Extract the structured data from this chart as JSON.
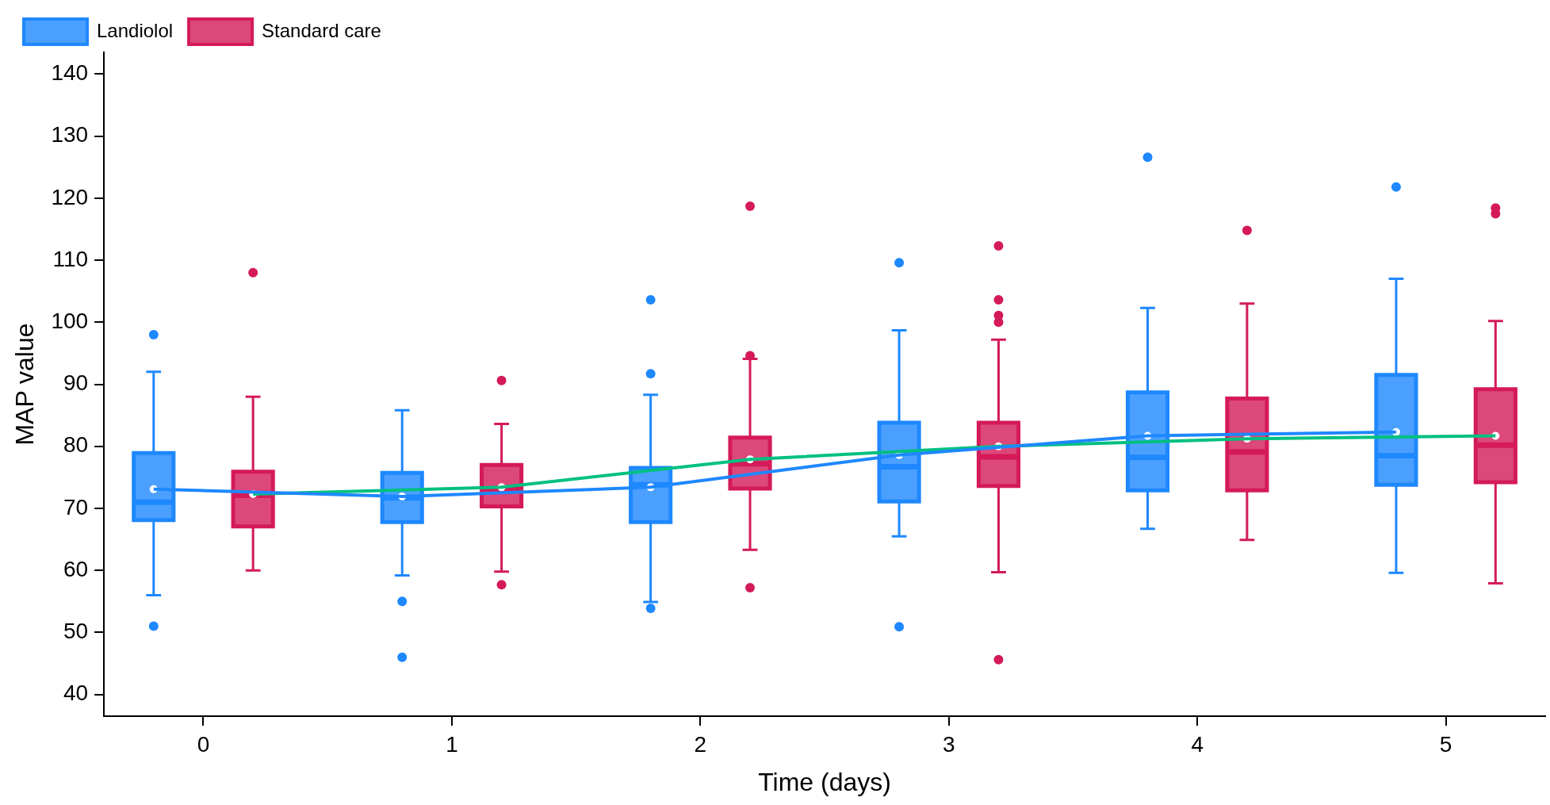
{
  "chart_data": {
    "type": "box",
    "xlabel": "Time (days)",
    "ylabel": "MAP value",
    "xlim": [
      -0.4,
      5.4
    ],
    "xticks": [
      0,
      1,
      2,
      3,
      4,
      5
    ],
    "ylim": [
      36.5,
      143.5
    ],
    "yticks": [
      40,
      50,
      60,
      70,
      80,
      90,
      100,
      110,
      120,
      130,
      140
    ],
    "grid": false,
    "legend": "top left",
    "series": [
      {
        "name": "Landiolol",
        "color": "#1e88ff",
        "x": [
          -0.2,
          0.8,
          1.8,
          2.8,
          3.8,
          4.8
        ],
        "boxes": [
          {
            "low": 56.0,
            "q1": 68.1,
            "median": 71.0,
            "q3": 78.9,
            "high": 92.0,
            "mean": 73.1,
            "outliers": [
              98.0,
              51.0
            ]
          },
          {
            "low": 59.2,
            "q1": 67.8,
            "median": 71.7,
            "q3": 75.7,
            "high": 85.8,
            "mean": 71.9,
            "outliers": [
              55.0,
              46.0
            ]
          },
          {
            "low": 54.9,
            "q1": 67.8,
            "median": 73.8,
            "q3": 76.5,
            "high": 88.3,
            "mean": 73.4,
            "outliers": [
              103.6,
              91.7,
              53.9
            ]
          },
          {
            "low": 65.5,
            "q1": 71.1,
            "median": 76.7,
            "q3": 83.8,
            "high": 98.7,
            "mean": 78.6,
            "outliers": [
              109.6,
              50.9
            ]
          },
          {
            "low": 66.7,
            "q1": 72.9,
            "median": 78.2,
            "q3": 88.7,
            "high": 102.3,
            "mean": 81.7,
            "outliers": [
              126.6
            ]
          },
          {
            "low": 59.6,
            "q1": 73.8,
            "median": 78.5,
            "q3": 91.5,
            "high": 107.0,
            "mean": 82.3,
            "outliers": [
              121.8
            ]
          }
        ]
      },
      {
        "name": "Standard care",
        "color": "#d41a5a",
        "x": [
          0.2,
          1.2,
          2.2,
          3.2,
          4.2,
          5.2
        ],
        "boxes": [
          {
            "low": 60.0,
            "q1": 67.1,
            "median": 72.1,
            "q3": 75.9,
            "high": 88.0,
            "mean": 72.3,
            "outliers": [
              108.0
            ]
          },
          {
            "low": 59.8,
            "q1": 70.3,
            "median": 73.1,
            "q3": 77.0,
            "high": 83.6,
            "mean": 73.4,
            "outliers": [
              90.6,
              57.7
            ]
          },
          {
            "low": 63.3,
            "q1": 73.2,
            "median": 77.2,
            "q3": 81.4,
            "high": 94.1,
            "mean": 77.9,
            "outliers": [
              118.7,
              94.6,
              57.2
            ]
          },
          {
            "low": 59.7,
            "q1": 73.6,
            "median": 78.3,
            "q3": 83.8,
            "high": 97.2,
            "mean": 80.0,
            "outliers": [
              112.3,
              103.6,
              101.1,
              100.0,
              45.6
            ]
          },
          {
            "low": 64.9,
            "q1": 72.9,
            "median": 79.1,
            "q3": 87.7,
            "high": 103.0,
            "mean": 81.2,
            "outliers": [
              114.8
            ]
          },
          {
            "low": 57.9,
            "q1": 74.2,
            "median": 80.2,
            "q3": 89.2,
            "high": 100.2,
            "mean": 81.7,
            "outliers": [
              118.4,
              117.5
            ]
          }
        ]
      },
      {
        "type": "line",
        "color": "#1e88ff",
        "x": [
          -0.2,
          0.8,
          1.8,
          2.8,
          3.8,
          4.8
        ],
        "values": [
          73.1,
          71.9,
          73.4,
          78.6,
          81.7,
          82.3
        ]
      },
      {
        "type": "line",
        "color": "#00c080",
        "x": [
          0.2,
          1.2,
          2.2,
          3.2,
          4.2,
          5.2
        ],
        "values": [
          72.3,
          73.4,
          77.9,
          80.0,
          81.2,
          81.7
        ]
      }
    ]
  }
}
